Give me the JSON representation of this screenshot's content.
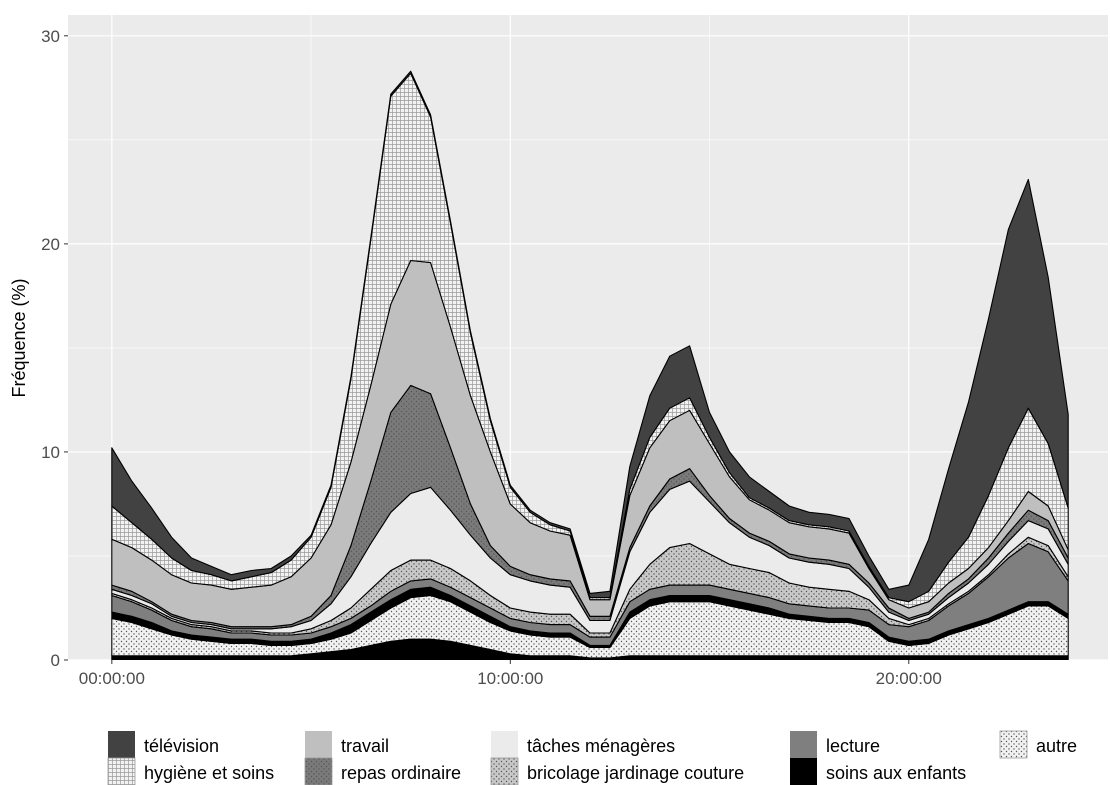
{
  "chart_data": {
    "type": "area",
    "stacked": true,
    "title": "",
    "xlabel": "",
    "ylabel": "Fréquence (%)",
    "ylim": [
      0,
      31
    ],
    "yticks": [
      0,
      10,
      20,
      30
    ],
    "xlim_hours": [
      -1.1,
      25
    ],
    "xticks": [
      {
        "hour": 0,
        "label": "00:00:00"
      },
      {
        "hour": 10,
        "label": "10:00:00"
      },
      {
        "hour": 20,
        "label": "20:00:00"
      }
    ],
    "grid": true,
    "legend_position": "bottom",
    "x_hours": [
      0,
      0.5,
      1,
      1.5,
      2,
      2.5,
      3,
      3.5,
      4,
      4.5,
      5,
      5.5,
      6,
      6.5,
      7,
      7.5,
      8,
      8.5,
      9,
      9.5,
      10,
      10.5,
      11,
      11.5,
      12,
      12.5,
      13,
      13.5,
      14,
      14.5,
      15,
      15.5,
      16,
      16.5,
      17,
      17.5,
      18,
      18.5,
      19,
      19.5,
      20,
      20.5,
      21,
      21.5,
      22,
      22.5,
      23,
      23.5,
      24
    ],
    "series": [
      {
        "name": "soins aux enfants",
        "color": "#000000",
        "pattern": "solid",
        "values": [
          0.2,
          0.2,
          0.2,
          0.2,
          0.2,
          0.2,
          0.2,
          0.2,
          0.2,
          0.2,
          0.3,
          0.4,
          0.5,
          0.7,
          0.9,
          1.0,
          1.0,
          0.9,
          0.7,
          0.5,
          0.3,
          0.2,
          0.2,
          0.2,
          0.1,
          0.1,
          0.2,
          0.2,
          0.2,
          0.2,
          0.2,
          0.2,
          0.2,
          0.2,
          0.2,
          0.2,
          0.2,
          0.2,
          0.2,
          0.2,
          0.2,
          0.2,
          0.2,
          0.2,
          0.2,
          0.2,
          0.2,
          0.2,
          0.2
        ]
      },
      {
        "name": "autre",
        "color": "#f2f2f2",
        "pattern": "dots",
        "values": [
          1.8,
          1.6,
          1.3,
          1.0,
          0.8,
          0.7,
          0.6,
          0.6,
          0.5,
          0.5,
          0.5,
          0.6,
          0.8,
          1.2,
          1.6,
          2.0,
          2.1,
          1.9,
          1.6,
          1.3,
          1.1,
          1.0,
          0.9,
          0.9,
          0.5,
          0.5,
          1.8,
          2.4,
          2.6,
          2.6,
          2.6,
          2.4,
          2.2,
          2.0,
          1.8,
          1.7,
          1.6,
          1.6,
          1.4,
          0.7,
          0.5,
          0.6,
          1.0,
          1.3,
          1.6,
          2.0,
          2.4,
          2.4,
          1.8
        ]
      },
      {
        "name": "soins aux enfants ",
        "color": "#000000",
        "pattern": "solid",
        "values": [
          0.3,
          0.3,
          0.3,
          0.2,
          0.2,
          0.2,
          0.2,
          0.2,
          0.2,
          0.2,
          0.2,
          0.3,
          0.4,
          0.4,
          0.4,
          0.4,
          0.4,
          0.3,
          0.3,
          0.3,
          0.2,
          0.2,
          0.2,
          0.2,
          0.1,
          0.1,
          0.3,
          0.3,
          0.3,
          0.3,
          0.3,
          0.3,
          0.3,
          0.3,
          0.2,
          0.2,
          0.2,
          0.2,
          0.2,
          0.2,
          0.2,
          0.2,
          0.2,
          0.2,
          0.2,
          0.2,
          0.2,
          0.2,
          0.2
        ]
      },
      {
        "name": "lecture",
        "color": "#7f7f7f",
        "pattern": "solid",
        "values": [
          0.8,
          0.7,
          0.6,
          0.5,
          0.4,
          0.4,
          0.3,
          0.3,
          0.3,
          0.3,
          0.3,
          0.3,
          0.3,
          0.3,
          0.4,
          0.4,
          0.4,
          0.4,
          0.4,
          0.4,
          0.4,
          0.4,
          0.4,
          0.4,
          0.4,
          0.4,
          0.5,
          0.5,
          0.5,
          0.5,
          0.5,
          0.5,
          0.5,
          0.5,
          0.5,
          0.5,
          0.5,
          0.5,
          0.6,
          0.6,
          0.7,
          0.9,
          1.2,
          1.5,
          2.0,
          2.5,
          2.8,
          2.4,
          1.6
        ]
      },
      {
        "name": "bricolage jardinage couture",
        "color": "#c8c8c8",
        "pattern": "dots",
        "values": [
          0.1,
          0.1,
          0.1,
          0.1,
          0.1,
          0.1,
          0.1,
          0.1,
          0.1,
          0.1,
          0.2,
          0.3,
          0.5,
          0.8,
          1.0,
          1.0,
          0.9,
          0.9,
          0.8,
          0.6,
          0.5,
          0.5,
          0.5,
          0.5,
          0.2,
          0.2,
          0.6,
          1.2,
          1.8,
          2.0,
          1.5,
          1.2,
          1.2,
          1.2,
          1.0,
          0.9,
          0.9,
          0.8,
          0.5,
          0.3,
          0.1,
          0.1,
          0.1,
          0.1,
          0.1,
          0.2,
          0.3,
          0.3,
          0.2
        ]
      },
      {
        "name": "tâches ménagères",
        "color": "#ebebeb",
        "pattern": "solid",
        "values": [
          0.2,
          0.2,
          0.2,
          0.1,
          0.1,
          0.1,
          0.1,
          0.1,
          0.2,
          0.3,
          0.4,
          0.8,
          1.5,
          2.2,
          2.8,
          3.2,
          3.5,
          2.8,
          2.2,
          1.8,
          1.6,
          1.5,
          1.4,
          1.3,
          0.6,
          0.6,
          1.8,
          2.5,
          2.8,
          3.0,
          2.5,
          2.0,
          1.5,
          1.3,
          1.2,
          1.2,
          1.2,
          1.1,
          0.6,
          0.3,
          0.2,
          0.2,
          0.3,
          0.4,
          0.5,
          0.6,
          0.8,
          0.8,
          0.6
        ]
      },
      {
        "name": "repas ordinaire",
        "color": "#7a7a7a",
        "pattern": "dots",
        "values": [
          0.2,
          0.2,
          0.1,
          0.1,
          0.1,
          0.1,
          0.1,
          0.1,
          0.1,
          0.1,
          0.2,
          0.4,
          1.5,
          3.0,
          4.8,
          5.2,
          4.5,
          3.0,
          1.5,
          0.6,
          0.4,
          0.3,
          0.3,
          0.3,
          0.2,
          0.2,
          0.2,
          0.3,
          0.5,
          0.6,
          0.3,
          0.2,
          0.2,
          0.2,
          0.2,
          0.2,
          0.2,
          0.2,
          0.2,
          0.2,
          0.1,
          0.1,
          0.2,
          0.2,
          0.3,
          0.4,
          0.5,
          0.4,
          0.3
        ]
      },
      {
        "name": "travail",
        "color": "#bfbfbf",
        "pattern": "solid",
        "values": [
          2.2,
          2.1,
          2.0,
          1.9,
          1.8,
          1.8,
          1.8,
          1.9,
          2.0,
          2.3,
          2.8,
          3.4,
          4.0,
          4.6,
          5.2,
          6.0,
          6.3,
          5.8,
          5.2,
          4.5,
          3.0,
          2.5,
          2.3,
          2.2,
          0.8,
          0.8,
          2.5,
          2.8,
          2.8,
          2.8,
          2.5,
          2.0,
          1.6,
          1.5,
          1.5,
          1.5,
          1.5,
          1.5,
          0.7,
          0.4,
          0.5,
          0.5,
          0.5,
          0.5,
          0.5,
          0.6,
          0.9,
          0.7,
          0.4
        ]
      },
      {
        "name": "hygiène et soins",
        "color": "#f2f2f2",
        "pattern": "grid",
        "values": [
          1.6,
          1.2,
          1.0,
          0.8,
          0.6,
          0.5,
          0.4,
          0.5,
          0.6,
          0.8,
          1.0,
          1.8,
          4.0,
          7.0,
          10.0,
          9.0,
          7.0,
          5.0,
          3.0,
          1.5,
          0.8,
          0.5,
          0.3,
          0.2,
          0.1,
          0.1,
          0.3,
          0.5,
          0.6,
          0.6,
          0.3,
          0.2,
          0.1,
          0.1,
          0.1,
          0.1,
          0.1,
          0.1,
          0.1,
          0.1,
          0.3,
          0.5,
          1.0,
          1.5,
          2.5,
          3.5,
          4.0,
          3.0,
          2.0
        ]
      },
      {
        "name": "télévision",
        "color": "#424242",
        "pattern": "solid",
        "values": [
          2.8,
          2.0,
          1.5,
          1.0,
          0.6,
          0.4,
          0.3,
          0.3,
          0.2,
          0.2,
          0.1,
          0.1,
          0.1,
          0.1,
          0.1,
          0.1,
          0.1,
          0.1,
          0.1,
          0.1,
          0.1,
          0.1,
          0.1,
          0.1,
          0.2,
          0.3,
          1.1,
          2.0,
          2.5,
          2.5,
          1.2,
          1.0,
          1.0,
          0.8,
          0.7,
          0.6,
          0.6,
          0.6,
          0.5,
          0.4,
          0.8,
          2.5,
          4.5,
          6.5,
          8.5,
          10.5,
          11.0,
          8.0,
          4.5
        ]
      }
    ],
    "legend": [
      {
        "label": "télévision",
        "color": "#424242",
        "pattern": "solid"
      },
      {
        "label": "travail",
        "color": "#bfbfbf",
        "pattern": "solid"
      },
      {
        "label": "tâches ménagères",
        "color": "#ebebeb",
        "pattern": "solid"
      },
      {
        "label": "lecture",
        "color": "#7f7f7f",
        "pattern": "solid"
      },
      {
        "label": "autre",
        "color": "#f2f2f2",
        "pattern": "dots"
      },
      {
        "label": "hygiène et soins",
        "color": "#f2f2f2",
        "pattern": "grid"
      },
      {
        "label": "repas ordinaire",
        "color": "#7a7a7a",
        "pattern": "dots"
      },
      {
        "label": "bricolage jardinage couture",
        "color": "#c8c8c8",
        "pattern": "dots"
      },
      {
        "label": "soins aux enfants",
        "color": "#000000",
        "pattern": "solid"
      }
    ],
    "panel_background": "#ebebeb",
    "gridline_color": "#ffffff"
  }
}
